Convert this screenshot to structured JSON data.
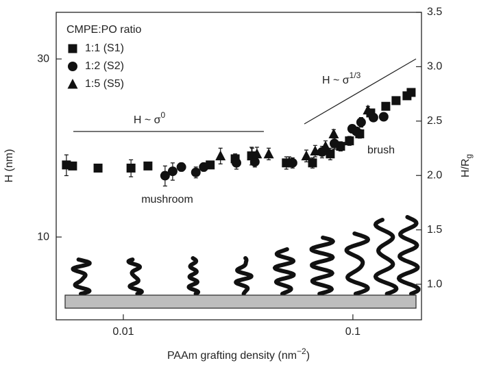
{
  "chart_data": {
    "type": "scatter",
    "x_label": [
      "PAAm grafting density (nm",
      "−2",
      ")"
    ],
    "y_label": "H (nm)",
    "y2_label": [
      "H/R",
      "g"
    ],
    "xscale": "log",
    "yscale": "log",
    "xlim": [
      0.0051,
      0.199
    ],
    "xticks": [
      0.01,
      0.1
    ],
    "ylim": [
      6.0,
      40
    ],
    "yticks": [
      10,
      30
    ],
    "y2lim": [
      0.673,
      3.5
    ],
    "y2ticks": [
      {
        "value": 1.0,
        "label": "1.0"
      },
      1.5,
      {
        "value": 2.0,
        "label": "2.0"
      },
      2.5,
      {
        "value": 3.0,
        "label": "3.0"
      },
      3.5
    ],
    "legend_title": "CMPE:PO ratio",
    "legend": "upper left",
    "series": [
      {
        "name": "1:1 (S1)",
        "marker": "square",
        "color": "#111111",
        "x": [
          0.00565,
          0.00601,
          0.00776,
          0.0108,
          0.0128,
          0.0239,
          0.0307,
          0.0362,
          0.0513,
          0.0667,
          0.0797,
          0.0884,
          0.0966,
          0.1071,
          0.1196,
          0.1391,
          0.1542,
          0.1721,
          0.1794
        ],
        "values": [
          15.6,
          15.5,
          15.3,
          15.3,
          15.5,
          15.6,
          16.2,
          16.5,
          15.8,
          15.8,
          16.7,
          17.5,
          18.1,
          18.9,
          21.5,
          22.4,
          23.2,
          23.9,
          24.4
        ],
        "errors": [
          1.0,
          0.3,
          0.3,
          0.8,
          0.3,
          0.3,
          0.5,
          0.9,
          0.6,
          0.5,
          0.6,
          0.5,
          0.5,
          0.5,
          0.4,
          0.3,
          0.3,
          0.3,
          0.4
        ]
      },
      {
        "name": "1:2 (S2)",
        "marker": "circle",
        "color": "#111111",
        "x": [
          0.0152,
          0.0164,
          0.0179,
          0.0207,
          0.0224,
          0.0311,
          0.0374,
          0.0546,
          0.0734,
          0.0831,
          0.0993,
          0.1035,
          0.1086,
          0.1229,
          0.1362
        ],
        "values": [
          14.6,
          15.0,
          15.4,
          14.9,
          15.4,
          15.8,
          15.9,
          15.8,
          16.9,
          17.8,
          19.5,
          19.2,
          20.3,
          20.9,
          21.0
        ],
        "errors": [
          0.9,
          0.8,
          0.4,
          0.5,
          0.4,
          0.6,
          0.5,
          0.5,
          0.6,
          0.6,
          0.5,
          0.5,
          0.6,
          0.5,
          0.5
        ]
      },
      {
        "name": "1:5 (S5)",
        "marker": "triangle",
        "color": "#111111",
        "x": [
          0.0265,
          0.0364,
          0.0382,
          0.043,
          0.0528,
          0.0627,
          0.0685,
          0.076,
          0.0825,
          0.1163
        ],
        "values": [
          16.5,
          16.5,
          16.7,
          16.7,
          15.9,
          16.5,
          17.0,
          17.5,
          18.9,
          21.9
        ],
        "errors": [
          0.8,
          0.8,
          0.7,
          0.6,
          0.5,
          0.6,
          0.6,
          0.6,
          0.5,
          0.5
        ]
      }
    ],
    "annotations": [
      {
        "text": "H ~ σ",
        "sup": "0"
      },
      {
        "text": "H ~ σ",
        "sup": "1/3"
      },
      {
        "text": "mushroom"
      },
      {
        "text": "brush"
      }
    ]
  }
}
